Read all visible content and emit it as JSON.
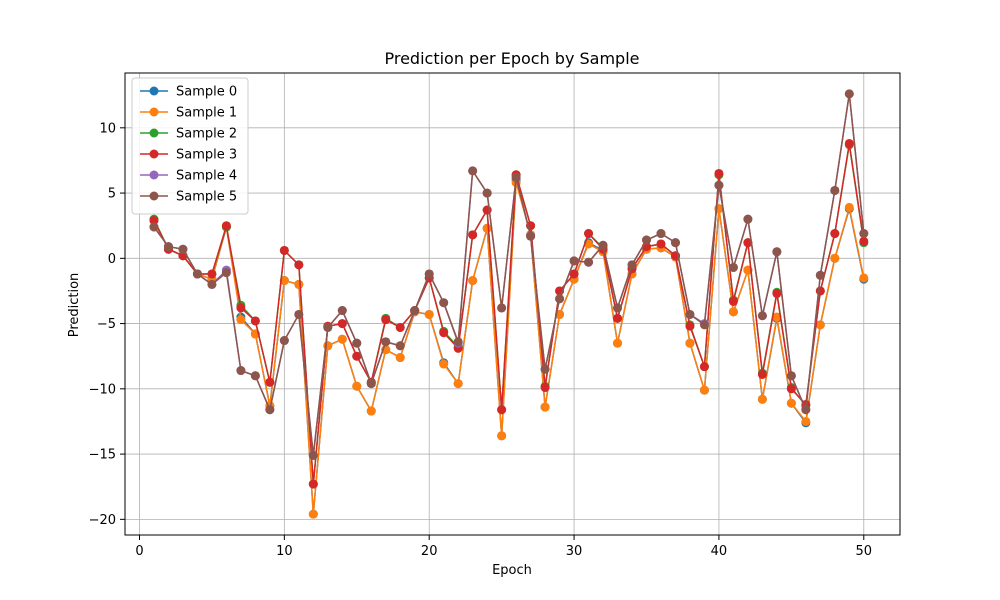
{
  "chart_data": {
    "type": "line",
    "title": "Prediction per Epoch by Sample",
    "xlabel": "Epoch",
    "ylabel": "Prediction",
    "xlim": [
      -1,
      52.5
    ],
    "ylim": [
      -21.2,
      14.2
    ],
    "xticks": [
      0,
      10,
      20,
      30,
      40,
      50
    ],
    "yticks": [
      -20,
      -15,
      -10,
      -5,
      0,
      5,
      10
    ],
    "grid": true,
    "legend_position": "top-left",
    "x": [
      1,
      2,
      3,
      4,
      5,
      6,
      7,
      8,
      9,
      10,
      11,
      12,
      13,
      14,
      15,
      16,
      17,
      18,
      19,
      20,
      21,
      22,
      23,
      24,
      25,
      26,
      27,
      28,
      29,
      30,
      31,
      32,
      33,
      34,
      35,
      36,
      37,
      38,
      39,
      40,
      41,
      42,
      43,
      44,
      45,
      46,
      47,
      48,
      49,
      50
    ],
    "series": [
      {
        "name": "Sample 0",
        "color": "#1f77b4",
        "values": [
          2.9,
          0.7,
          0.2,
          -1.2,
          -1.6,
          2.4,
          -4.5,
          -5.8,
          -11.3,
          -1.7,
          -2.0,
          -19.6,
          -6.7,
          -6.2,
          -9.8,
          -11.7,
          -7.0,
          -7.6,
          -4.1,
          -4.3,
          -8.0,
          -9.6,
          -1.7,
          2.3,
          -13.6,
          6.0,
          1.8,
          -11.4,
          -4.3,
          -1.6,
          1.2,
          0.6,
          -6.5,
          -1.2,
          0.7,
          0.8,
          0.1,
          -6.5,
          -10.1,
          3.8,
          -4.1,
          -0.9,
          -10.8,
          -4.6,
          -11.1,
          -12.6,
          -5.1,
          0.0,
          3.8,
          -1.6
        ]
      },
      {
        "name": "Sample 1",
        "color": "#ff7f0e",
        "values": [
          2.9,
          0.7,
          0.2,
          -1.2,
          -1.6,
          2.4,
          -4.7,
          -5.8,
          -11.3,
          -1.7,
          -2.0,
          -19.6,
          -6.7,
          -6.2,
          -9.8,
          -11.7,
          -7.0,
          -7.6,
          -4.1,
          -4.3,
          -8.1,
          -9.6,
          -1.7,
          2.3,
          -13.6,
          5.8,
          1.8,
          -11.4,
          -4.3,
          -1.6,
          1.1,
          0.5,
          -6.5,
          -1.2,
          0.7,
          0.8,
          0.1,
          -6.5,
          -10.1,
          3.8,
          -4.1,
          -0.9,
          -10.8,
          -4.5,
          -11.1,
          -12.5,
          -5.1,
          0.0,
          3.9,
          -1.5
        ]
      },
      {
        "name": "Sample 2",
        "color": "#2ca02c",
        "values": [
          3.0,
          0.7,
          0.2,
          -1.2,
          -1.2,
          2.4,
          -3.6,
          -4.8,
          -9.5,
          0.6,
          -0.5,
          -17.3,
          -5.2,
          -5.0,
          -7.5,
          -9.5,
          -4.6,
          -5.3,
          -4.0,
          -1.5,
          -5.6,
          -6.8,
          1.8,
          3.7,
          -11.6,
          6.4,
          2.5,
          -9.8,
          -2.5,
          -1.2,
          1.9,
          0.8,
          -4.6,
          -0.8,
          0.9,
          1.1,
          0.2,
          -5.1,
          -8.3,
          6.4,
          -3.2,
          1.2,
          -8.8,
          -2.6,
          -9.9,
          -11.3,
          -2.5,
          1.9,
          8.7,
          1.2
        ]
      },
      {
        "name": "Sample 3",
        "color": "#d62728",
        "values": [
          2.9,
          0.7,
          0.2,
          -1.2,
          -1.2,
          2.5,
          -3.8,
          -4.8,
          -9.5,
          0.6,
          -0.5,
          -17.3,
          -5.2,
          -5.0,
          -7.5,
          -9.5,
          -4.7,
          -5.3,
          -4.0,
          -1.5,
          -5.7,
          -6.9,
          1.8,
          3.7,
          -11.6,
          6.4,
          2.5,
          -9.9,
          -2.5,
          -1.2,
          1.9,
          0.7,
          -4.6,
          -0.8,
          0.9,
          1.1,
          0.2,
          -5.2,
          -8.3,
          6.5,
          -3.3,
          1.2,
          -8.9,
          -2.7,
          -10.0,
          -11.2,
          -2.5,
          1.9,
          8.8,
          1.3
        ]
      },
      {
        "name": "Sample 4",
        "color": "#9467bd",
        "values": [
          2.4,
          0.9,
          0.7,
          -1.2,
          -2.0,
          -0.9,
          -8.6,
          -9.0,
          -11.6,
          -6.3,
          -4.3,
          -15.1,
          -5.3,
          -4.0,
          -6.5,
          -9.6,
          -6.4,
          -6.7,
          -4.0,
          -1.2,
          -3.4,
          -6.5,
          6.7,
          5.0,
          -3.8,
          6.2,
          1.7,
          -8.5,
          -3.1,
          -0.2,
          -0.3,
          1.0,
          -3.8,
          -0.5,
          1.4,
          1.9,
          1.2,
          -4.3,
          -5.0,
          5.6,
          -0.7,
          3.0,
          -4.4,
          0.5,
          -9.0,
          -11.6,
          -1.3,
          5.2,
          12.6,
          1.9
        ]
      },
      {
        "name": "Sample 5",
        "color": "#8c564b",
        "values": [
          2.4,
          0.9,
          0.7,
          -1.2,
          -2.0,
          -1.1,
          -8.6,
          -9.0,
          -11.6,
          -6.3,
          -4.3,
          -15.1,
          -5.3,
          -4.0,
          -6.5,
          -9.6,
          -6.4,
          -6.7,
          -4.0,
          -1.2,
          -3.4,
          -6.4,
          6.7,
          5.0,
          -3.8,
          6.2,
          1.7,
          -8.5,
          -3.1,
          -0.2,
          -0.3,
          1.0,
          -3.8,
          -0.5,
          1.4,
          1.9,
          1.2,
          -4.3,
          -5.1,
          5.6,
          -0.7,
          3.0,
          -4.4,
          0.5,
          -9.0,
          -11.6,
          -1.3,
          5.2,
          12.6,
          1.9
        ]
      }
    ]
  }
}
